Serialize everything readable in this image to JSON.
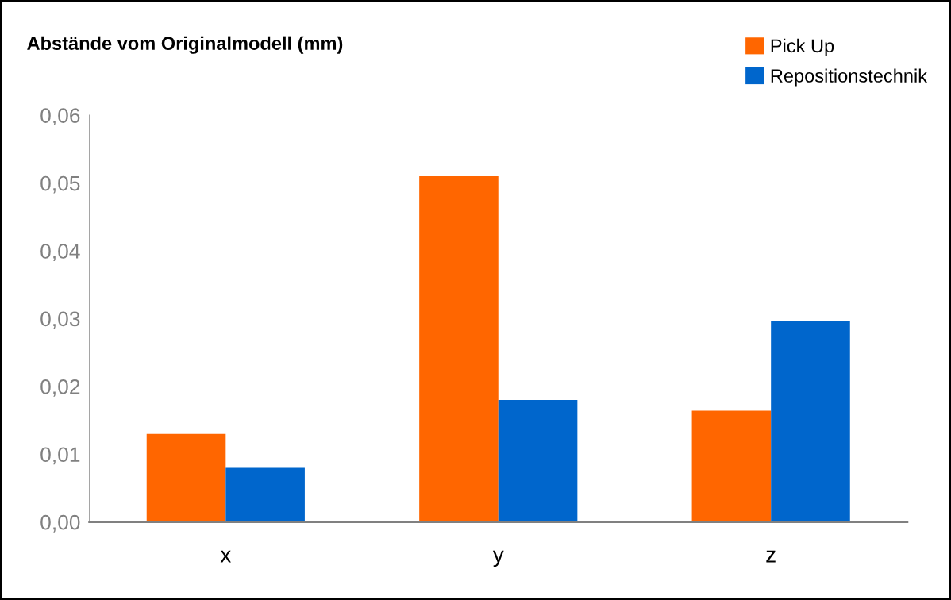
{
  "chart_data": {
    "type": "bar",
    "title": "Abstände vom Originalmodell (mm)",
    "categories": [
      "x",
      "y",
      "z"
    ],
    "series": [
      {
        "name": "Pick Up",
        "color": "#ff6600",
        "values": [
          0.013,
          0.051,
          0.0164
        ]
      },
      {
        "name": "Repositionstechnik",
        "color": "#0066cc",
        "values": [
          0.008,
          0.018,
          0.0296
        ]
      }
    ],
    "ylim": [
      0,
      0.06
    ],
    "yticks": [
      {
        "value": 0,
        "label": "0,00"
      },
      {
        "value": 0.01,
        "label": "0,01"
      },
      {
        "value": 0.02,
        "label": "0,02"
      },
      {
        "value": 0.03,
        "label": "0,03"
      },
      {
        "value": 0.04,
        "label": "0,04"
      },
      {
        "value": 0.05,
        "label": "0,05"
      },
      {
        "value": 0.06,
        "label": "0,06"
      }
    ],
    "grid": false,
    "legend": "top right"
  }
}
